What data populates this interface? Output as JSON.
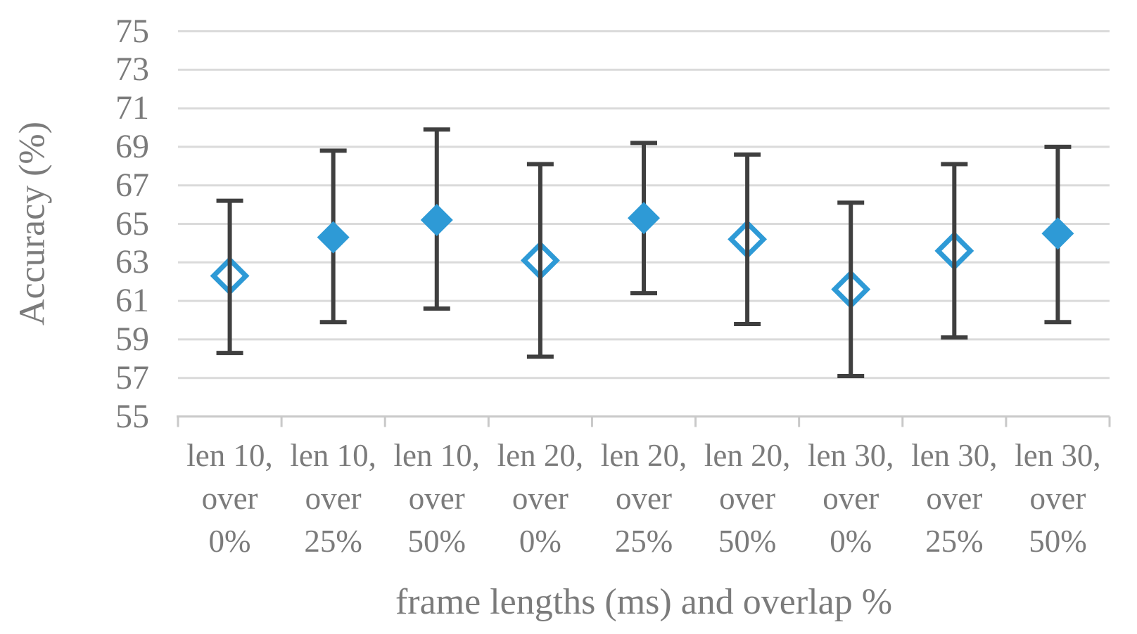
{
  "chart_data": {
    "type": "scatter",
    "title": "",
    "xlabel": "frame lengths (ms) and overlap %",
    "ylabel": "Accuracy (%)",
    "ylim": [
      55,
      75
    ],
    "ytick_values": [
      75,
      73,
      71,
      69,
      67,
      65,
      63,
      61,
      59,
      57,
      55
    ],
    "grid": true,
    "legend": "none",
    "marker_shape": "diamond",
    "categories": [
      "len 10, over 0%",
      "len 10, over 25%",
      "len 10, over 50%",
      "len 20, over 0%",
      "len 20, over 25%",
      "len 20, over 50%",
      "len 30, over 0%",
      "len 30, over 25%",
      "len 30, over 50%"
    ],
    "category_label_lines": [
      [
        "len 10,",
        "over",
        "0%"
      ],
      [
        "len 10,",
        "over",
        "25%"
      ],
      [
        "len 10,",
        "over",
        "50%"
      ],
      [
        "len 20,",
        "over",
        "0%"
      ],
      [
        "len 20,",
        "over",
        "25%"
      ],
      [
        "len 20,",
        "over",
        "50%"
      ],
      [
        "len 30,",
        "over",
        "0%"
      ],
      [
        "len 30,",
        "over",
        "25%"
      ],
      [
        "len 30,",
        "over",
        "50%"
      ]
    ],
    "points": [
      {
        "category": "len 10, over 0%",
        "value": 62.3,
        "err_low": 58.3,
        "err_high": 66.2,
        "marker": "hollow"
      },
      {
        "category": "len 10, over 25%",
        "value": 64.3,
        "err_low": 59.9,
        "err_high": 68.8,
        "marker": "filled"
      },
      {
        "category": "len 10, over 50%",
        "value": 65.2,
        "err_low": 60.6,
        "err_high": 69.9,
        "marker": "filled"
      },
      {
        "category": "len 20, over 0%",
        "value": 63.1,
        "err_low": 58.1,
        "err_high": 68.1,
        "marker": "hollow"
      },
      {
        "category": "len 20, over 25%",
        "value": 65.3,
        "err_low": 61.4,
        "err_high": 69.2,
        "marker": "filled"
      },
      {
        "category": "len 20, over 50%",
        "value": 64.2,
        "err_low": 59.8,
        "err_high": 68.6,
        "marker": "hollow"
      },
      {
        "category": "len 30, over 0%",
        "value": 61.6,
        "err_low": 57.1,
        "err_high": 66.1,
        "marker": "hollow"
      },
      {
        "category": "len 30, over 25%",
        "value": 63.6,
        "err_low": 59.1,
        "err_high": 68.1,
        "marker": "hollow"
      },
      {
        "category": "len 30, over 50%",
        "value": 64.5,
        "err_low": 59.9,
        "err_high": 69.0,
        "marker": "filled"
      }
    ],
    "colors": {
      "marker_blue": "#2E9AD6",
      "hollow_fill": "#FFFFFF",
      "error_bar": "#3F3F3F",
      "gridline": "#DADADA",
      "axis_line": "#C9C9C9",
      "text_gray": "#7B7B7B",
      "background": "#FFFFFF"
    }
  }
}
